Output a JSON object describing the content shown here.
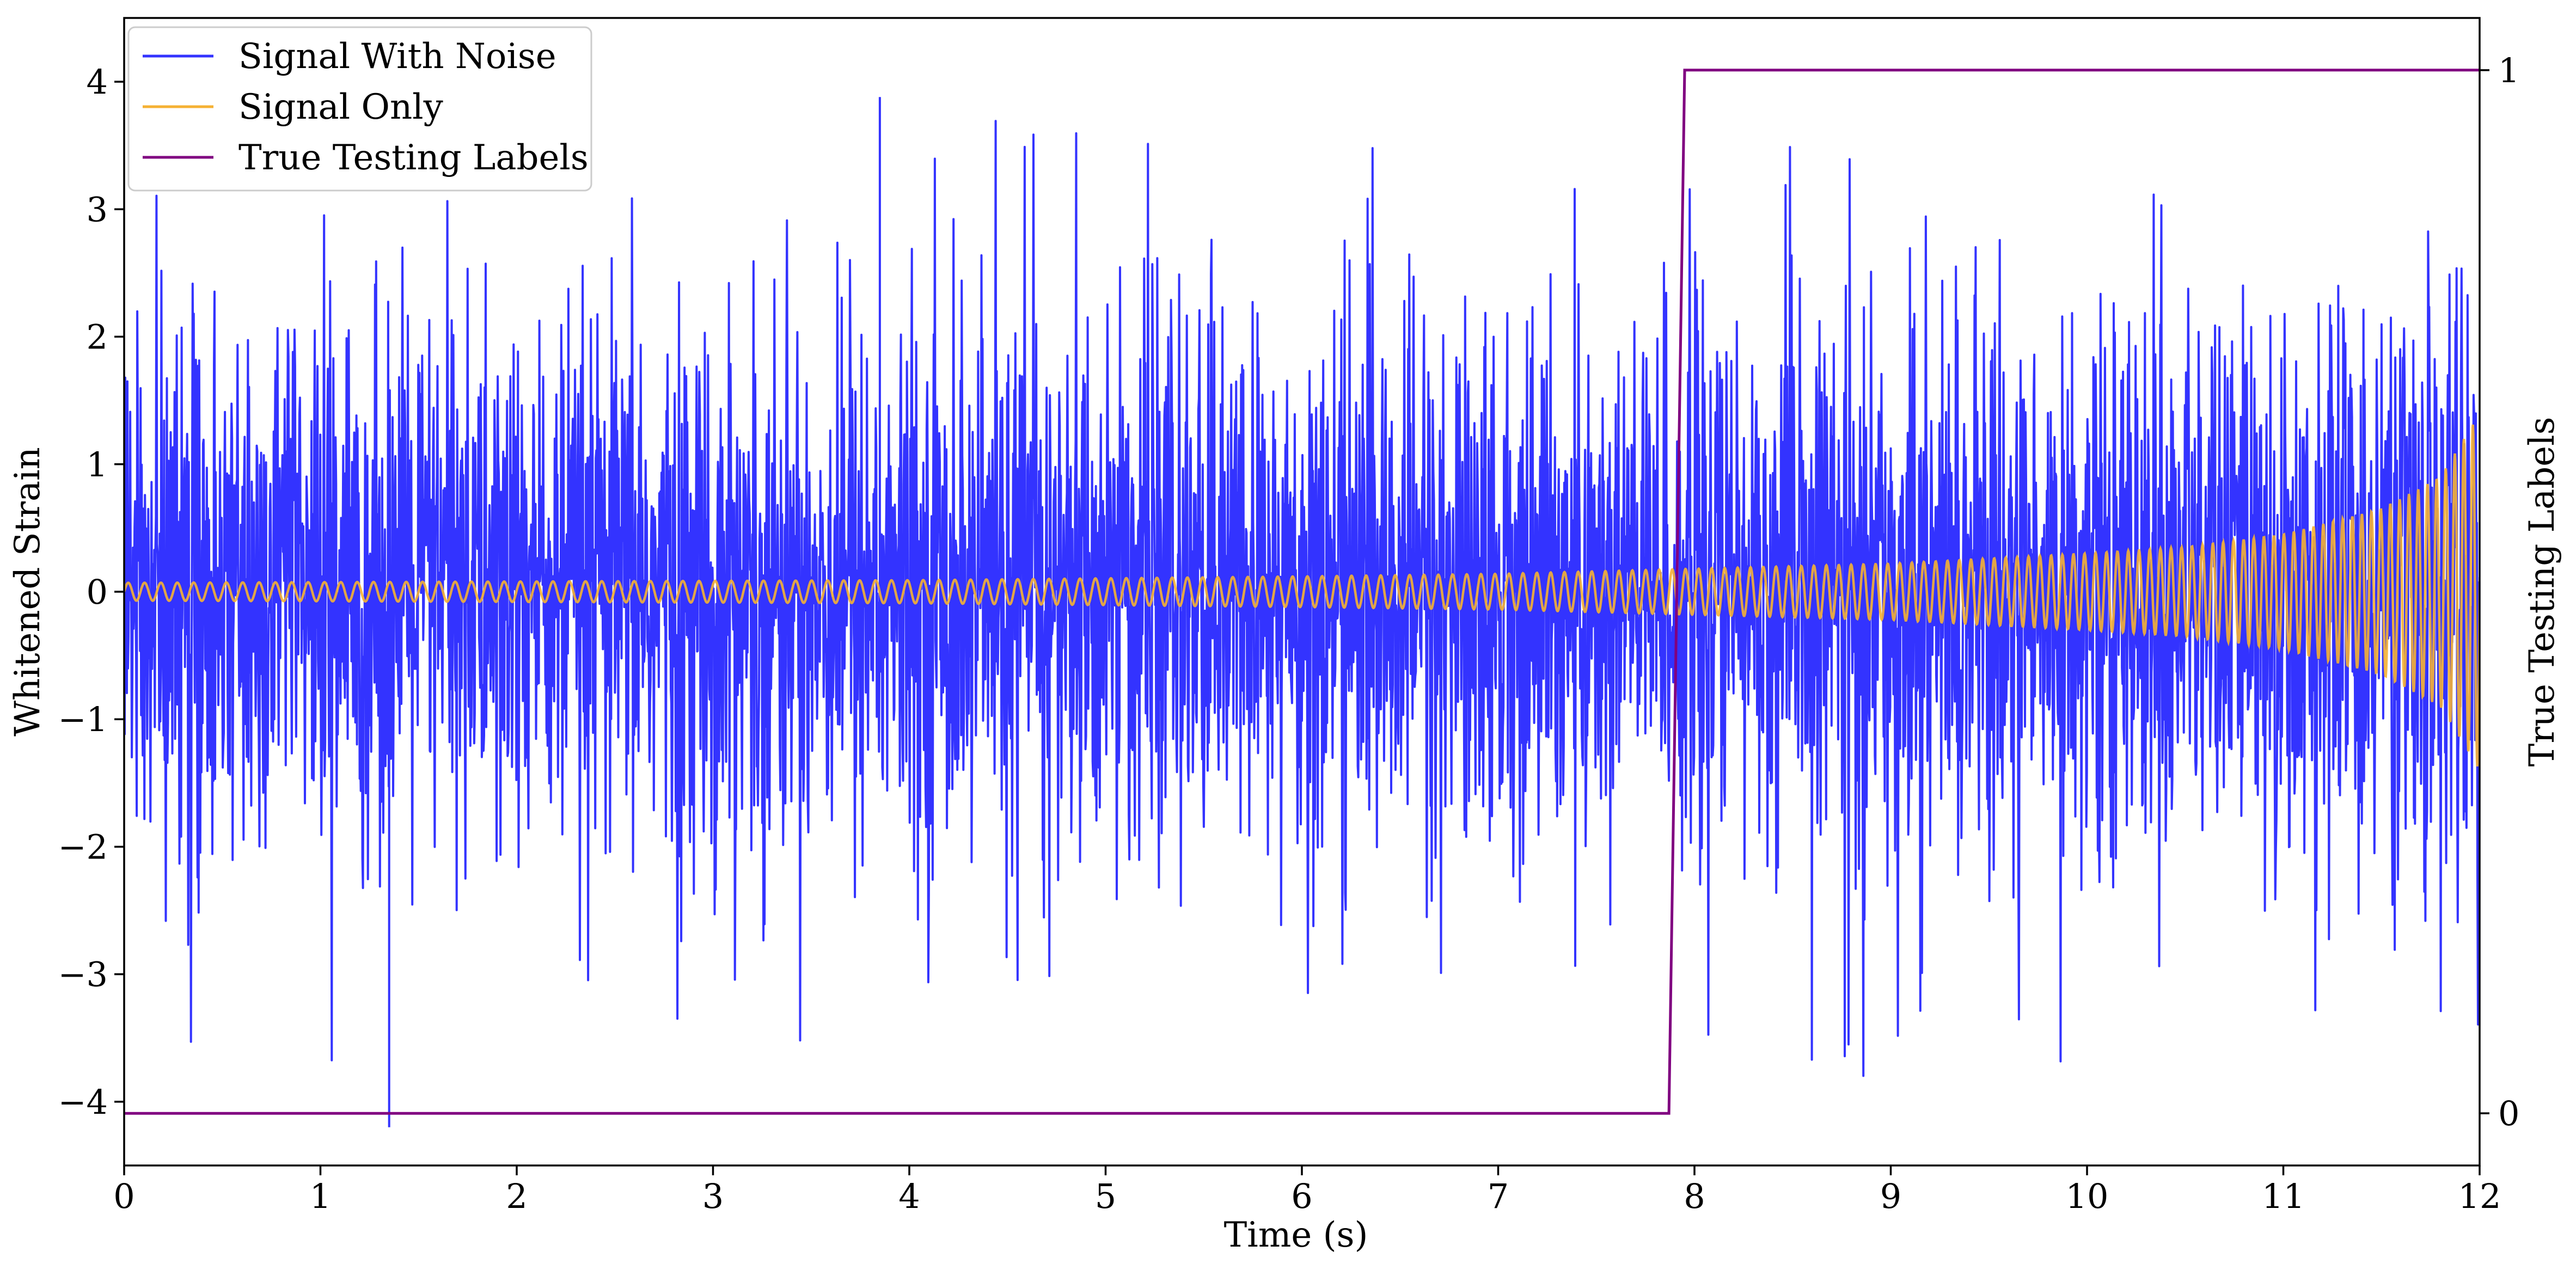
{
  "chart_data": {
    "type": "line",
    "title": "",
    "xlabel": "Time (s)",
    "ylabel": "Whitened Strain",
    "ylabel_right": "True Testing Labels",
    "xlim": [
      0,
      12
    ],
    "ylim": [
      -4.5,
      4.5
    ],
    "ylim_right": [
      -0.05,
      1.05
    ],
    "x_ticks": [
      "0",
      "1",
      "2",
      "3",
      "4",
      "5",
      "6",
      "7",
      "8",
      "9",
      "10",
      "11",
      "12"
    ],
    "y_ticks": [
      "−4",
      "−3",
      "−2",
      "−1",
      "0",
      "1",
      "2",
      "3",
      "4"
    ],
    "y_ticks_values": [
      -4,
      -3,
      -2,
      -1,
      0,
      1,
      2,
      3,
      4
    ],
    "y_right_ticks": [
      "0",
      "1"
    ],
    "y_right_ticks_values": [
      0,
      1
    ],
    "grid": false,
    "legend_position": "top-left",
    "series": [
      {
        "name": "Signal With Noise",
        "color": "#3333ff",
        "axis": "left",
        "description_values": {
          "typical_envelope": [
            -2.3,
            2.3
          ],
          "max_peak": [
            3.85,
            3.88
          ],
          "min_trough": [
            1.35,
            -4.2
          ]
        }
      },
      {
        "name": "Signal Only",
        "color": "#f5b133",
        "axis": "left",
        "envelope": {
          "t": [
            0,
            2,
            4,
            6,
            7,
            8,
            9,
            10,
            10.5,
            11,
            11.5,
            11.8,
            12
          ],
          "amplitude": [
            0.07,
            0.08,
            0.09,
            0.12,
            0.14,
            0.18,
            0.22,
            0.3,
            0.35,
            0.45,
            0.65,
            0.9,
            1.4
          ]
        }
      },
      {
        "name": "True Testing Labels",
        "color": "#800080",
        "axis": "right",
        "x": [
          0,
          7.87,
          7.95,
          12
        ],
        "y": [
          0,
          0,
          1,
          1
        ]
      }
    ]
  }
}
